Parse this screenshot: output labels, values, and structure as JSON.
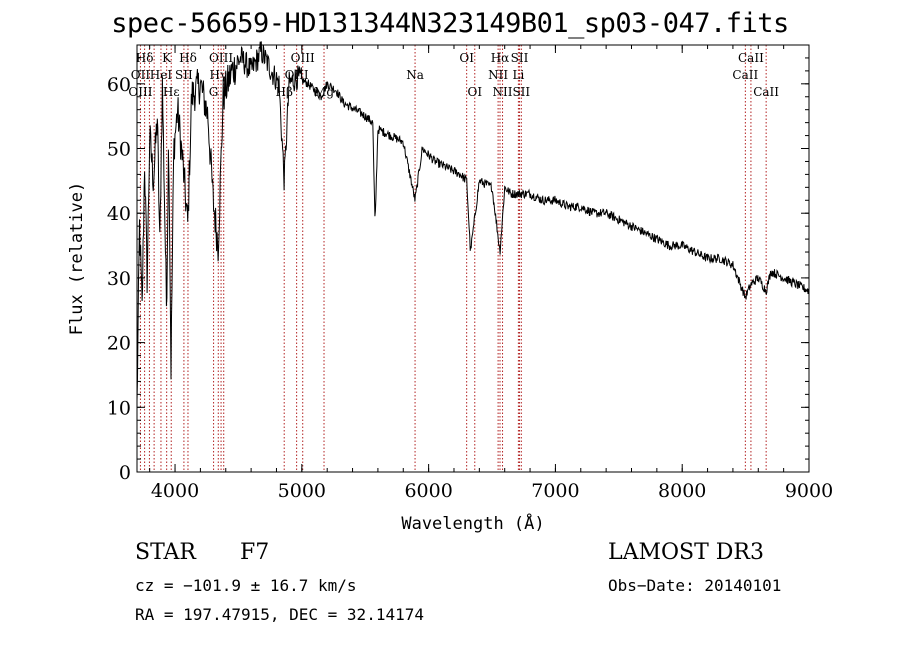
{
  "chart_data": {
    "type": "line",
    "title": "spec-56659-HD131344N323149B01_sp03-047.fits",
    "xlabel": "Wavelength (Å)",
    "ylabel": "Flux (relative)",
    "xlim": [
      3700,
      9000
    ],
    "ylim": [
      0,
      66
    ],
    "xticks": [
      4000,
      5000,
      6000,
      7000,
      8000,
      9000
    ],
    "yticks": [
      0,
      10,
      20,
      30,
      40,
      50,
      60
    ],
    "series": [
      {
        "name": "spectrum",
        "x": [
          3700,
          3720,
          3740,
          3760,
          3780,
          3800,
          3830,
          3860,
          3880,
          3900,
          3933,
          3950,
          3968,
          3990,
          4020,
          4060,
          4101,
          4130,
          4200,
          4260,
          4300,
          4340,
          4380,
          4450,
          4520,
          4600,
          4680,
          4760,
          4820,
          4861,
          4900,
          4960,
          5050,
          5150,
          5200,
          5270,
          5330,
          5420,
          5500,
          5560,
          5577,
          5600,
          5700,
          5800,
          5893,
          5950,
          6050,
          6150,
          6250,
          6300,
          6330,
          6400,
          6500,
          6563,
          6600,
          6650,
          6720,
          6800,
          6900,
          7000,
          7100,
          7200,
          7300,
          7400,
          7500,
          7600,
          7700,
          7800,
          7900,
          8000,
          8100,
          8200,
          8300,
          8400,
          8498,
          8542,
          8600,
          8662,
          8700,
          8800,
          8900,
          9000
        ],
        "y": [
          10,
          38,
          25,
          48,
          30,
          52,
          45,
          55,
          35,
          60,
          25,
          52,
          16,
          50,
          56,
          48,
          38,
          58,
          60,
          55,
          42,
          35,
          58,
          62,
          64,
          62,
          65,
          62,
          60,
          45,
          60,
          61,
          60,
          58,
          60,
          59,
          57,
          56,
          55,
          54,
          38,
          53,
          52,
          51,
          42,
          50,
          48,
          47,
          46,
          45,
          34,
          45,
          44,
          34,
          44,
          43,
          43,
          43,
          42,
          42,
          41,
          41,
          40,
          40,
          39,
          38,
          37,
          36,
          35,
          35,
          34,
          33,
          33,
          32,
          27,
          29,
          30,
          28,
          31,
          30,
          29,
          28
        ]
      }
    ],
    "lines": [
      {
        "label": "Hδ",
        "wave": 3760,
        "row": 0
      },
      {
        "label": "K",
        "wave": 3934,
        "row": 0
      },
      {
        "label": "Hδ",
        "wave": 4102,
        "row": 0
      },
      {
        "label": "OIII",
        "wave": 4363,
        "row": 0
      },
      {
        "label": "OIII",
        "wave": 5007,
        "row": 0
      },
      {
        "label": "OI",
        "wave": 6300,
        "row": 0
      },
      {
        "label": "Hα",
        "wave": 6563,
        "row": 0
      },
      {
        "label": "SII",
        "wave": 6717,
        "row": 0
      },
      {
        "label": "CaII",
        "wave": 8542,
        "row": 0
      },
      {
        "label": "OII",
        "wave": 3727,
        "row": 1
      },
      {
        "label": "HeI",
        "wave": 3889,
        "row": 1
      },
      {
        "label": "SII",
        "wave": 4070,
        "row": 1
      },
      {
        "label": "Hγ",
        "wave": 4341,
        "row": 1
      },
      {
        "label": "OIII",
        "wave": 4959,
        "row": 1
      },
      {
        "label": "Na",
        "wave": 5893,
        "row": 1
      },
      {
        "label": "NII",
        "wave": 6548,
        "row": 1
      },
      {
        "label": "Li",
        "wave": 6708,
        "row": 1
      },
      {
        "label": "CaII",
        "wave": 8498,
        "row": 1
      },
      {
        "label": "OIII",
        "wave": 3727,
        "row": 2
      },
      {
        "label": "Hε",
        "wave": 3970,
        "row": 2
      },
      {
        "label": "G",
        "wave": 4304,
        "row": 2
      },
      {
        "label": "Hβ",
        "wave": 4861,
        "row": 2
      },
      {
        "label": "Mg",
        "wave": 5175,
        "row": 2
      },
      {
        "label": "OI",
        "wave": 6364,
        "row": 2
      },
      {
        "label": "NII",
        "wave": 6583,
        "row": 2
      },
      {
        "label": "SII",
        "wave": 6731,
        "row": 2
      },
      {
        "label": "CaII",
        "wave": 8662,
        "row": 2
      }
    ],
    "extra_line_waves": [
      3798,
      3835,
      4384
    ]
  },
  "info": {
    "type_label": "STAR",
    "subclass": "F7",
    "survey": "LAMOST DR3",
    "cz": "cz = −101.9 ± 16.7 km/s",
    "obs_date": "Obs−Date: 20140101",
    "coords": "RA = 197.47915, DEC =  32.14174"
  },
  "colors": {
    "axis": "#000000",
    "spectrum": "#000000",
    "line_marker": "#b22222"
  }
}
